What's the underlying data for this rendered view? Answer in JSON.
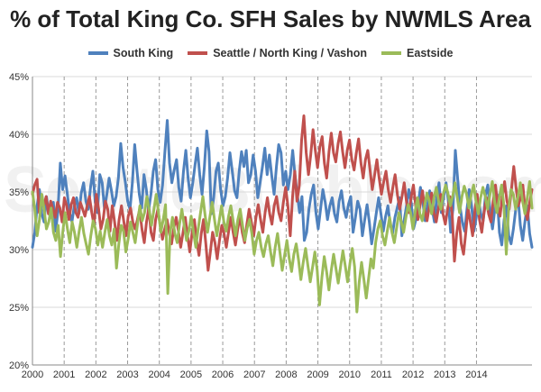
{
  "chart_data": {
    "type": "line",
    "title": "% of Total King Co. SFH Sales by NWMLS Area",
    "xlabel": "",
    "ylabel": "",
    "ylim": [
      20,
      45
    ],
    "yticks": [
      "20%",
      "25%",
      "30%",
      "35%",
      "40%",
      "45%"
    ],
    "xticks": [
      "2000",
      "2001",
      "2002",
      "2003",
      "2004",
      "2005",
      "2006",
      "2007",
      "2008",
      "2009",
      "2010",
      "2011",
      "2012",
      "2013",
      "2014"
    ],
    "grid": "vertical dashed at years, horizontal at ticks",
    "legend_position": "top",
    "series": [
      {
        "name": "South King",
        "color": "#4f81bd",
        "values": [
          30.2,
          31.5,
          33.8,
          35.2,
          33.1,
          32.4,
          34.6,
          33.2,
          32.8,
          34.1,
          31.6,
          33.4,
          37.5,
          35.2,
          36.4,
          34.8,
          33.2,
          32.4,
          33.8,
          34.5,
          33.1,
          34.9,
          35.8,
          34.2,
          33.5,
          35.4,
          36.8,
          34.1,
          33.2,
          36.5,
          35.8,
          33.5,
          34.8,
          36.2,
          35.1,
          33.8,
          34.6,
          36.2,
          39.2,
          37.1,
          35.8,
          34.2,
          33.5,
          35.8,
          39.1,
          36.8,
          34.8,
          33.6,
          36.5,
          35.2,
          33.4,
          34.8,
          36.8,
          37.8,
          35.2,
          34.1,
          35.6,
          38.5,
          41.2,
          37.5,
          35.8,
          36.9,
          37.8,
          35.4,
          34.2,
          36.8,
          38.6,
          36.2,
          34.5,
          35.8,
          37.4,
          38.8,
          36.5,
          34.8,
          37.2,
          40.3,
          38.5,
          33.1,
          34.5,
          36.8,
          37.5,
          35.2,
          33.8,
          34.6,
          36.2,
          38.4,
          36.8,
          35.1,
          34.5,
          36.8,
          38.5,
          37.2,
          38.6,
          35.8,
          36.5,
          38.2,
          36.8,
          34.5,
          35.8,
          37.2,
          38.8,
          36.5,
          38.2,
          36.4,
          34.8,
          37.2,
          39.1,
          38.4,
          35.6,
          36.8,
          35.2,
          36.5,
          38.6,
          36.4,
          34.8,
          33.2,
          34.6,
          30.8,
          31.5,
          33.5,
          34.8,
          35.6,
          33.2,
          31.8,
          33.5,
          35.2,
          34.1,
          32.6,
          33.8,
          34.5,
          33.1,
          32.4,
          34.2,
          35.1,
          33.6,
          32.8,
          33.9,
          34.6,
          31.5,
          32.8,
          34.2,
          33.5,
          31.2,
          32.6,
          33.9,
          32.4,
          30.5,
          31.8,
          33.2,
          34.5,
          33.1,
          31.6,
          32.9,
          33.8,
          32.2,
          31.4,
          32.8,
          33.6,
          34.5,
          31.2,
          32.6,
          33.8,
          35.2,
          34.1,
          31.8,
          32.6,
          33.9,
          35.4,
          34.2,
          32.5,
          33.8,
          35.1,
          33.6,
          32.4,
          34.5,
          35.8,
          33.2,
          34.6,
          35.8,
          34.2,
          31.5,
          33.6,
          38.6,
          36.2,
          33.8,
          32.4,
          31.6,
          33.5,
          35.2,
          33.8,
          31.6,
          32.8,
          34.2,
          33.1,
          32.5,
          34.8,
          35.6,
          33.2,
          31.8,
          33.5,
          34.8,
          31.5,
          30.4,
          32.6,
          33.8,
          31.2,
          30.5,
          31.8,
          33.5,
          34.6,
          32.1,
          30.8,
          32.5,
          33.8,
          31.4,
          30.2
        ]
      },
      {
        "name": "Seattle / North King / Vashon",
        "color": "#c0504d",
        "values": [
          34.8,
          35.6,
          36.1,
          33.2,
          34.5,
          33.8,
          34.6,
          33.1,
          34.2,
          33.5,
          32.8,
          34.1,
          33.6,
          32.4,
          34.5,
          33.8,
          32.6,
          33.9,
          34.5,
          33.2,
          32.8,
          34.1,
          33.5,
          32.9,
          33.8,
          34.6,
          33.2,
          32.1,
          34.8,
          33.5,
          31.8,
          32.6,
          34.2,
          33.5,
          31.6,
          33.8,
          32.4,
          30.8,
          32.6,
          33.8,
          32.5,
          31.2,
          32.9,
          33.6,
          32.4,
          31.8,
          32.6,
          33.5,
          31.8,
          30.6,
          32.4,
          33.6,
          31.5,
          30.8,
          32.6,
          33.5,
          32.1,
          30.9,
          31.8,
          32.6,
          31.4,
          30.5,
          31.9,
          32.8,
          31.6,
          30.2,
          31.5,
          32.8,
          31.2,
          29.8,
          31.5,
          32.6,
          30.8,
          29.5,
          31.4,
          32.6,
          30.5,
          28.2,
          29.8,
          31.5,
          30.6,
          29.2,
          30.8,
          32.1,
          31.4,
          30.2,
          31.6,
          32.8,
          31.5,
          30.4,
          31.8,
          32.9,
          31.5,
          30.6,
          32.2,
          33.5,
          32.4,
          31.2,
          32.8,
          33.9,
          32.6,
          31.5,
          33.2,
          34.5,
          33.1,
          32.2,
          33.8,
          34.6,
          33.2,
          32.5,
          34.1,
          35.4,
          33.8,
          31.2,
          34.5,
          36.8,
          34.2,
          35.6,
          39.5,
          41.6,
          38.4,
          36.5,
          38.2,
          40.4,
          38.6,
          37.1,
          38.9,
          39.8,
          37.5,
          36.2,
          38.5,
          40.1,
          38.4,
          37.6,
          39.2,
          40.2,
          38.5,
          37.1,
          38.6,
          39.5,
          37.8,
          36.9,
          38.4,
          39.6,
          37.5,
          36.2,
          37.8,
          38.6,
          36.9,
          35.2,
          36.5,
          37.8,
          36.2,
          34.8,
          35.9,
          36.8,
          35.2,
          34.1,
          35.4,
          36.5,
          34.8,
          33.5,
          34.6,
          35.8,
          34.1,
          33.2,
          34.5,
          35.6,
          33.8,
          32.6,
          33.9,
          35.1,
          33.4,
          32.5,
          33.8,
          34.9,
          33.2,
          32.4,
          33.6,
          34.8,
          33.1,
          32.2,
          33.5,
          34.6,
          33.1,
          29.0,
          31.4,
          32.8,
          30.5,
          29.6,
          31.5,
          33.6,
          32.4,
          31.2,
          33.5,
          34.8,
          32.6,
          31.5,
          33.2,
          34.5,
          33.1,
          32.4,
          34.2,
          35.6,
          33.8,
          32.9,
          34.6,
          35.9,
          34.2,
          33.5,
          35.2,
          37.2,
          35.4,
          33.8,
          34.5,
          35.6,
          33.4,
          32.6,
          34.1,
          35.2
        ]
      },
      {
        "name": "Eastside",
        "color": "#9bbb59",
        "values": [
          35.0,
          33.5,
          31.2,
          32.6,
          34.8,
          33.5,
          31.8,
          32.4,
          33.6,
          31.5,
          30.8,
          32.1,
          29.4,
          31.6,
          33.2,
          31.8,
          30.6,
          32.4,
          31.5,
          30.2,
          31.6,
          32.8,
          31.4,
          30.5,
          29.6,
          31.2,
          32.5,
          31.8,
          30.4,
          31.6,
          30.2,
          31.5,
          32.6,
          31.2,
          30.4,
          31.8,
          28.4,
          30.5,
          32.1,
          31.6,
          29.8,
          30.9,
          32.4,
          31.5,
          30.6,
          32.2,
          33.8,
          32.5,
          33.2,
          34.6,
          33.5,
          32.1,
          33.4,
          34.8,
          33.2,
          31.5,
          32.6,
          33.9,
          26.2,
          31.5,
          32.8,
          31.4,
          30.6,
          32.2,
          33.5,
          32.1,
          30.8,
          31.6,
          32.9,
          31.5,
          30.2,
          31.8,
          33.2,
          34.6,
          32.9,
          31.5,
          32.8,
          34.1,
          32.6,
          31.2,
          32.5,
          33.8,
          32.4,
          31.6,
          32.9,
          33.8,
          32.5,
          31.2,
          32.6,
          33.5,
          32.1,
          30.8,
          31.9,
          32.6,
          31.4,
          29.6,
          30.8,
          31.5,
          30.2,
          29.4,
          30.5,
          31.2,
          29.8,
          28.6,
          30.2,
          31.4,
          29.8,
          28.2,
          29.5,
          30.8,
          29.2,
          28.1,
          29.6,
          30.5,
          29.1,
          27.4,
          28.9,
          30.1,
          28.6,
          27.2,
          28.5,
          29.8,
          28.2,
          25.2,
          27.6,
          29.4,
          28.1,
          26.5,
          28.2,
          29.6,
          28.4,
          27.1,
          28.5,
          29.9,
          28.6,
          27.2,
          28.8,
          30.1,
          28.5,
          24.6,
          27.2,
          28.9,
          27.4,
          25.8,
          27.5,
          29.2,
          28.4,
          30.6,
          31.8,
          32.5,
          31.2,
          30.4,
          31.6,
          32.8,
          31.5,
          30.6,
          31.9,
          33.2,
          32.4,
          31.5,
          32.8,
          33.9,
          33.2,
          31.8,
          33.4,
          34.5,
          33.1,
          32.5,
          33.8,
          34.9,
          34.2,
          33.1,
          34.5,
          35.4,
          34.2,
          33.5,
          34.8,
          35.6,
          34.9,
          33.8,
          34.6,
          35.8,
          34.5,
          33.2,
          34.6,
          35.5,
          34.8,
          33.6,
          34.8,
          35.6,
          34.2,
          33.1,
          34.5,
          35.4,
          34.6,
          33.5,
          34.8,
          35.9,
          34.1,
          33.2,
          34.5,
          35.6,
          33.8,
          29.6,
          33.5,
          35.2,
          34.8,
          33.5,
          34.6,
          35.8,
          34.2,
          33.1,
          34.5,
          35.9,
          33.6
        ]
      }
    ]
  },
  "watermark": "SeattleBubble.com"
}
